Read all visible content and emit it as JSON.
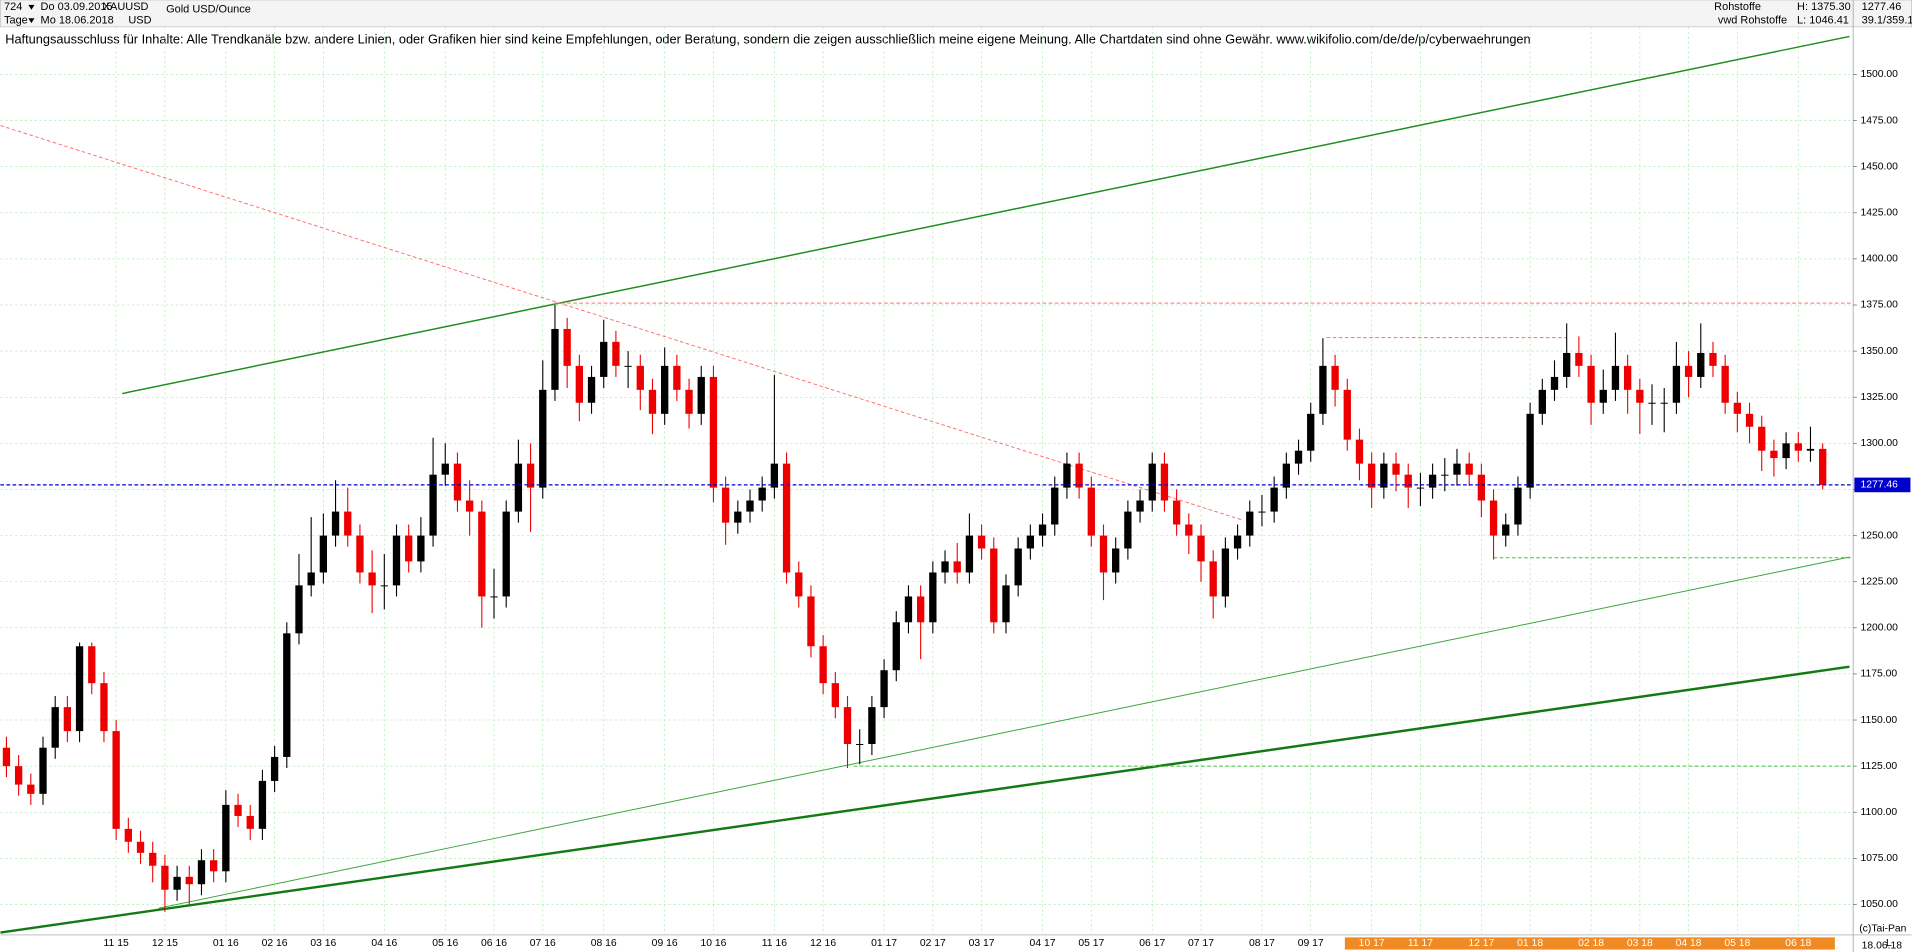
{
  "header": {
    "row1": [
      "724",
      "Do 03.09.2015",
      "XAUUSD",
      "Gold USD/Ounce"
    ],
    "row2": [
      "Tage",
      "Mo 18.06.2018",
      "USD"
    ],
    "right1": [
      "Rohstoffe",
      "H: 1375.30",
      "1277.46"
    ],
    "right2": [
      "vwd Rohstoffe",
      "L: 1046.41",
      "39.1/359.1"
    ],
    "disclaimer": "Haftungsausschluss für Inhalte: Alle Trendkanäle bzw. andere Linien, oder Grafiken hier sind keine Empfehlungen, oder Beratung, sondern die zeigen ausschließlich meine eigene Meinung. Alle Chartdaten sind ohne Gewähr.  www.wikifolio.com/de/de/p/cyberwaehrungen",
    "copyright": "(c)Tai-Pan",
    "scale_mode": "L",
    "last_date": "18.06.18"
  },
  "chart_data": {
    "type": "candlestick",
    "up_color": "#000000",
    "down_color": "#ee0000",
    "grid": true,
    "categories": [
      null,
      null,
      null,
      null,
      null,
      null,
      null,
      null,
      null,
      "11 15",
      null,
      null,
      null,
      "12 15",
      null,
      null,
      null,
      null,
      "01 16",
      null,
      null,
      null,
      "02 16",
      null,
      null,
      null,
      "03 16",
      null,
      null,
      null,
      null,
      "04 16",
      null,
      null,
      null,
      null,
      "05 16",
      null,
      null,
      null,
      "06 16",
      null,
      null,
      null,
      "07 16",
      null,
      null,
      null,
      null,
      "08 16",
      null,
      null,
      null,
      null,
      "09 16",
      null,
      null,
      null,
      "10 16",
      null,
      null,
      null,
      null,
      "11 16",
      null,
      null,
      null,
      "12 16",
      null,
      null,
      null,
      null,
      "01 17",
      null,
      null,
      null,
      "02 17",
      null,
      null,
      null,
      "03 17",
      null,
      null,
      null,
      null,
      "04 17",
      null,
      null,
      null,
      "05 17",
      null,
      null,
      null,
      null,
      "06 17",
      null,
      null,
      null,
      "07 17",
      null,
      null,
      null,
      null,
      "08 17",
      null,
      null,
      null,
      "09 17",
      null,
      null,
      null,
      null,
      "10 17",
      null,
      null,
      null,
      "11 17",
      null,
      null,
      null,
      null,
      "12 17",
      null,
      null,
      null,
      "01 18",
      null,
      null,
      null,
      null,
      "02 18",
      null,
      null,
      null,
      "03 18",
      null,
      null,
      null,
      "04 18",
      null,
      null,
      null,
      "05 18",
      null,
      null,
      null,
      null,
      "06 18",
      null,
      null
    ],
    "open": [
      1135,
      1125,
      1115,
      1110,
      1135,
      1157,
      1144,
      1190,
      1170,
      1144,
      1091,
      1084,
      1078,
      1071,
      1058,
      1065,
      1061,
      1074,
      1068,
      1104,
      1098,
      1091,
      1117,
      1130,
      1197,
      1223,
      1230,
      1250,
      1263,
      1250,
      1230,
      1223,
      1223,
      1250,
      1236,
      1250,
      1283,
      1289,
      1269,
      1263,
      1217,
      1217,
      1263,
      1289,
      1276,
      1329,
      1362,
      1342,
      1322,
      1336,
      1355,
      1342,
      1342,
      1329,
      1316,
      1342,
      1329,
      1316,
      1336,
      1276,
      1257,
      1263,
      1269,
      1276,
      1289,
      1230,
      1217,
      1190,
      1170,
      1157,
      1137,
      1137,
      1157,
      1177,
      1203,
      1217,
      1203,
      1230,
      1236,
      1230,
      1250,
      1243,
      1203,
      1223,
      1243,
      1250,
      1256,
      1276,
      1289,
      1276,
      1250,
      1230,
      1243,
      1263,
      1269,
      1289,
      1269,
      1256,
      1250,
      1236,
      1217,
      1243,
      1250,
      1263,
      1263,
      1276,
      1289,
      1296,
      1316,
      1342,
      1329,
      1302,
      1289,
      1276,
      1289,
      1283,
      1276,
      1276,
      1283,
      1283,
      1289,
      1283,
      1269,
      1250,
      1256,
      1276,
      1316,
      1329,
      1336,
      1349,
      1342,
      1322,
      1329,
      1342,
      1329,
      1322,
      1322,
      1322,
      1342,
      1336,
      1349,
      1342,
      1322,
      1316,
      1309,
      1296,
      1292,
      1300,
      1296,
      1297
    ],
    "high": [
      1141,
      1131,
      1121,
      1141,
      1163,
      1163,
      1192,
      1192,
      1176,
      1150,
      1097,
      1090,
      1084,
      1077,
      1071,
      1071,
      1080,
      1080,
      1112,
      1110,
      1104,
      1123,
      1136,
      1203,
      1240,
      1260,
      1262,
      1280,
      1276,
      1256,
      1242,
      1240,
      1256,
      1256,
      1260,
      1303,
      1300,
      1295,
      1280,
      1269,
      1232,
      1269,
      1302,
      1300,
      1345,
      1375,
      1368,
      1348,
      1342,
      1367,
      1361,
      1350,
      1348,
      1335,
      1352,
      1348,
      1335,
      1342,
      1342,
      1282,
      1269,
      1275,
      1282,
      1337,
      1295,
      1236,
      1223,
      1196,
      1176,
      1163,
      1145,
      1163,
      1183,
      1209,
      1223,
      1223,
      1236,
      1242,
      1246,
      1262,
      1256,
      1249,
      1229,
      1249,
      1256,
      1262,
      1282,
      1295,
      1295,
      1282,
      1256,
      1249,
      1269,
      1275,
      1295,
      1295,
      1275,
      1262,
      1256,
      1242,
      1249,
      1256,
      1269,
      1272,
      1282,
      1295,
      1302,
      1322,
      1357,
      1348,
      1335,
      1308,
      1295,
      1295,
      1295,
      1289,
      1284,
      1289,
      1292,
      1297,
      1295,
      1289,
      1275,
      1262,
      1282,
      1322,
      1335,
      1345,
      1365,
      1358,
      1348,
      1340,
      1360,
      1348,
      1335,
      1332,
      1330,
      1355,
      1350,
      1365,
      1355,
      1348,
      1328,
      1322,
      1315,
      1302,
      1306,
      1306,
      1309,
      1300
    ],
    "low": [
      1119,
      1109,
      1104,
      1104,
      1129,
      1138,
      1138,
      1164,
      1138,
      1085,
      1078,
      1072,
      1062,
      1046,
      1052,
      1050,
      1055,
      1062,
      1062,
      1092,
      1085,
      1085,
      1111,
      1124,
      1191,
      1217,
      1224,
      1244,
      1244,
      1224,
      1208,
      1210,
      1217,
      1230,
      1230,
      1244,
      1277,
      1263,
      1250,
      1200,
      1205,
      1211,
      1257,
      1252,
      1270,
      1323,
      1330,
      1312,
      1316,
      1330,
      1336,
      1330,
      1318,
      1305,
      1310,
      1323,
      1308,
      1310,
      1268,
      1245,
      1251,
      1257,
      1263,
      1270,
      1224,
      1211,
      1184,
      1164,
      1151,
      1124,
      1126,
      1131,
      1151,
      1171,
      1197,
      1183,
      1197,
      1224,
      1224,
      1224,
      1237,
      1197,
      1197,
      1217,
      1237,
      1244,
      1250,
      1270,
      1270,
      1244,
      1215,
      1224,
      1237,
      1257,
      1263,
      1263,
      1250,
      1240,
      1225,
      1205,
      1211,
      1237,
      1244,
      1255,
      1257,
      1270,
      1283,
      1290,
      1310,
      1320,
      1296,
      1280,
      1265,
      1270,
      1274,
      1265,
      1266,
      1270,
      1274,
      1277,
      1277,
      1260,
      1237,
      1244,
      1250,
      1270,
      1310,
      1323,
      1330,
      1336,
      1310,
      1316,
      1323,
      1316,
      1305,
      1310,
      1306,
      1316,
      1325,
      1330,
      1336,
      1316,
      1306,
      1300,
      1285,
      1282,
      1286,
      1290,
      1290,
      1275
    ],
    "close": [
      1125,
      1115,
      1110,
      1135,
      1157,
      1144,
      1190,
      1170,
      1144,
      1091,
      1084,
      1078,
      1071,
      1058,
      1065,
      1061,
      1074,
      1068,
      1104,
      1098,
      1091,
      1117,
      1130,
      1197,
      1223,
      1230,
      1250,
      1263,
      1250,
      1230,
      1223,
      1223,
      1250,
      1236,
      1250,
      1283,
      1289,
      1269,
      1263,
      1217,
      1217,
      1263,
      1289,
      1276,
      1329,
      1362,
      1342,
      1322,
      1336,
      1355,
      1342,
      1342,
      1329,
      1316,
      1342,
      1329,
      1316,
      1336,
      1276,
      1257,
      1263,
      1269,
      1276,
      1289,
      1230,
      1217,
      1190,
      1170,
      1157,
      1137,
      1137,
      1157,
      1177,
      1203,
      1217,
      1203,
      1230,
      1236,
      1230,
      1250,
      1243,
      1203,
      1223,
      1243,
      1250,
      1256,
      1276,
      1289,
      1276,
      1250,
      1230,
      1243,
      1263,
      1269,
      1289,
      1269,
      1256,
      1250,
      1236,
      1217,
      1243,
      1250,
      1263,
      1263,
      1276,
      1289,
      1296,
      1316,
      1342,
      1329,
      1302,
      1289,
      1276,
      1289,
      1283,
      1276,
      1276,
      1283,
      1283,
      1289,
      1283,
      1269,
      1250,
      1256,
      1276,
      1316,
      1329,
      1336,
      1349,
      1342,
      1322,
      1329,
      1342,
      1329,
      1322,
      1322,
      1322,
      1342,
      1336,
      1349,
      1342,
      1322,
      1316,
      1309,
      1296,
      1292,
      1300,
      1296,
      1297,
      1277.46
    ],
    "ylim": [
      1033.5,
      1525.8
    ],
    "yticks": [
      {
        "value": 1050,
        "label": "1050.00"
      },
      {
        "value": 1075,
        "label": "1075.00"
      },
      {
        "value": 1100,
        "label": "1100.00"
      },
      {
        "value": 1125,
        "label": "1125.00"
      },
      {
        "value": 1150,
        "label": "1150.00"
      },
      {
        "value": 1175,
        "label": "1175.00"
      },
      {
        "value": 1200,
        "label": "1200.00"
      },
      {
        "value": 1225,
        "label": "1225.00"
      },
      {
        "value": 1250,
        "label": "1250.00"
      },
      {
        "value": 1275,
        "label": "1275.00"
      },
      {
        "value": 1300,
        "label": "1300.00"
      },
      {
        "value": 1325,
        "label": "1325.00"
      },
      {
        "value": 1350,
        "label": "1350.00"
      },
      {
        "value": 1375,
        "label": "1375.00"
      },
      {
        "value": 1400,
        "label": "1400.00"
      },
      {
        "value": 1425,
        "label": "1425.00"
      },
      {
        "value": 1450,
        "label": "1450.00"
      },
      {
        "value": 1475,
        "label": "1475.00"
      },
      {
        "value": 1500,
        "label": "1500.00"
      }
    ],
    "reference_line": {
      "value": 1277.46,
      "color": "#0000cc"
    },
    "trendlines": [
      {
        "x": [
          9.5,
          151.2
        ],
        "y": [
          1327,
          1520.6
        ],
        "color": "#1e8c1e",
        "width": 1.2,
        "dashed": false
      },
      {
        "x": [
          12.5,
          151.2
        ],
        "y": [
          1048,
          1238.4
        ],
        "color": "#3aa53a",
        "width": 0.8,
        "dashed": false
      },
      {
        "x": [
          -0.5,
          151.2
        ],
        "y": [
          1034.8,
          1178.9
        ],
        "color": "#137a13",
        "width": 2,
        "dashed": false
      },
      {
        "x": [
          -0.5,
          101.5
        ],
        "y": [
          1472.3,
          1258.2
        ],
        "color": "#ff7070",
        "width": 0.8,
        "dashed": true
      },
      {
        "x": [
          45,
          151.3
        ],
        "y": [
          1376,
          1376
        ],
        "color": "#ff7070",
        "width": 0.8,
        "dashed": true
      },
      {
        "x": [
          108.3,
          128
        ],
        "y": [
          1357.3,
          1357.3
        ],
        "color": "#ff7070",
        "width": 0.8,
        "dashed": true
      },
      {
        "x": [
          122,
          151.3
        ],
        "y": [
          1238,
          1238
        ],
        "color": "#40c040",
        "width": 0.8,
        "dashed": true
      },
      {
        "x": [
          69.5,
          151.3
        ],
        "y": [
          1125,
          1125
        ],
        "color": "#40c040",
        "width": 0.8,
        "dashed": true
      }
    ]
  }
}
